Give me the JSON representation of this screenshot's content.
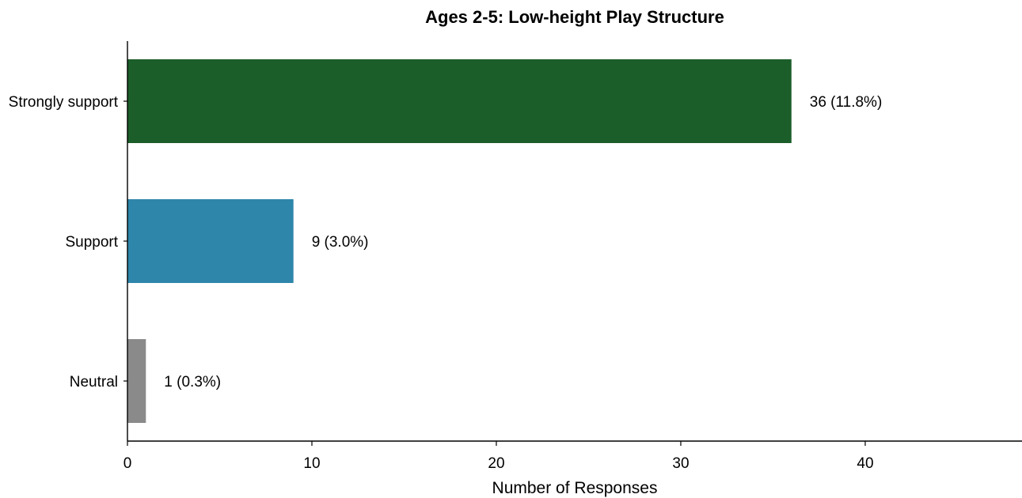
{
  "chart_data": {
    "type": "bar",
    "orientation": "horizontal",
    "title": "Ages 2-5: Low-height Play Structure",
    "xlabel": "Number of Responses",
    "ylabel": "",
    "xlim": [
      0,
      48.5
    ],
    "xticks": [
      0,
      10,
      20,
      30,
      40
    ],
    "grid": false,
    "categories": [
      "Strongly support",
      "Support",
      "Neutral"
    ],
    "values": [
      36,
      9,
      1
    ],
    "value_labels": [
      "36 (11.8%)",
      "9 (3.0%)",
      "1 (0.3%)"
    ],
    "colors": [
      "#1b5e2a",
      "#2e86ab",
      "#8a8a8a"
    ]
  }
}
